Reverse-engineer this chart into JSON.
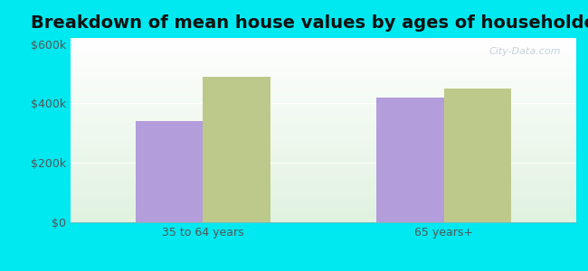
{
  "title": "Breakdown of mean house values by ages of householders",
  "categories": [
    "35 to 64 years",
    "65 years+"
  ],
  "series": {
    "Riverbend": [
      340000,
      420000
    ],
    "Montana": [
      490000,
      450000
    ]
  },
  "colors": {
    "Riverbend": "#b39ddb",
    "Montana": "#bdc98a"
  },
  "ylim": [
    0,
    620000
  ],
  "yticks": [
    0,
    200000,
    400000,
    600000
  ],
  "ytick_labels": [
    "$0",
    "$200k",
    "$400k",
    "$600k"
  ],
  "background_color": "#00e8f0",
  "bar_width": 0.28,
  "title_fontsize": 14,
  "legend_fontsize": 9,
  "tick_fontsize": 9,
  "watermark": "City-Data.com"
}
